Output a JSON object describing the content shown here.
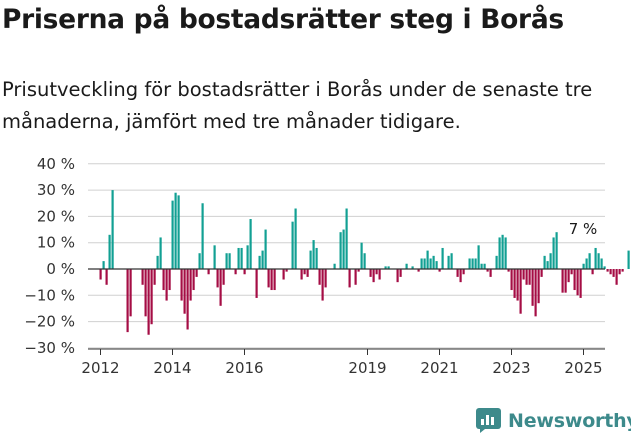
{
  "title": "Priserna på bostadsrätter steg i Borås",
  "subtitle": "Prisutveckling för bostadsrätter i Borås under de senaste tre månaderna, jämfört med tre månader tidigare.",
  "brand": "Newsworthy",
  "colors": {
    "positive": "#12a093",
    "negative": "#a50d45",
    "axis": "#333333",
    "grid": "#d0d0d0"
  },
  "chart_data": {
    "type": "bar",
    "y_unit": "%",
    "ylim": [
      -30,
      40
    ],
    "yticks": [
      "40 %",
      "30 %",
      "20 %",
      "10 %",
      "0 %",
      "−10 %",
      "−20 %",
      "−30 %"
    ],
    "ytick_values": [
      40,
      30,
      20,
      10,
      0,
      -10,
      -20,
      -30
    ],
    "xticks": [
      "2012",
      "2014",
      "2016",
      "2019",
      "2021",
      "2023",
      "2025"
    ],
    "xtick_dates": [
      "2012-01",
      "2014-01",
      "2016-01",
      "2019-06",
      "2021-06",
      "2023-06",
      "2025-06"
    ],
    "grid": "horizontal",
    "annotation": "7 %",
    "series": [
      {
        "x_start": "2012-01",
        "frequency": "monthly",
        "values": [
          -4,
          3,
          -6,
          13,
          30,
          0,
          0,
          0,
          0,
          -24,
          -18,
          0,
          0,
          0,
          -6,
          -18,
          -25,
          -21,
          -6,
          5,
          12,
          -8,
          -12,
          -8,
          26,
          29,
          28,
          -12,
          -17,
          -23,
          -12,
          -8,
          -3,
          6,
          25,
          0,
          -2,
          0,
          9,
          -7,
          -14,
          -6,
          6,
          6,
          0,
          -2,
          8,
          8,
          -2,
          9,
          19,
          0,
          -11,
          5,
          7,
          15,
          -7,
          -8,
          -8,
          0,
          0,
          -4,
          -1,
          0,
          18,
          23,
          0,
          -4,
          -2,
          -3,
          7,
          11,
          8,
          -6,
          -12,
          -7,
          0,
          0,
          2,
          0,
          14,
          15,
          23,
          -7,
          0,
          -6,
          -1,
          10,
          6,
          0,
          -3,
          -5,
          -2,
          -4,
          0,
          1,
          1,
          0,
          0,
          -5,
          -3,
          0,
          2,
          0,
          1,
          0,
          -1,
          4,
          4,
          7,
          4,
          5,
          3,
          -1,
          8,
          0,
          5,
          6,
          0,
          -3,
          -5,
          -2,
          0,
          4,
          4,
          4,
          9,
          2,
          2,
          -1,
          -3,
          0,
          5,
          12,
          13,
          12,
          -1,
          -8,
          -11,
          -12,
          -17,
          -4,
          -6,
          -6,
          -14,
          -18,
          -13,
          -3,
          5,
          3,
          6,
          12,
          14,
          0,
          -9,
          -9,
          -5,
          -2,
          -8,
          -10,
          -11,
          2,
          4,
          6,
          -2,
          8,
          6,
          4,
          1,
          -1,
          -2,
          -3,
          -6,
          -2,
          -1,
          0,
          7
        ]
      }
    ]
  }
}
